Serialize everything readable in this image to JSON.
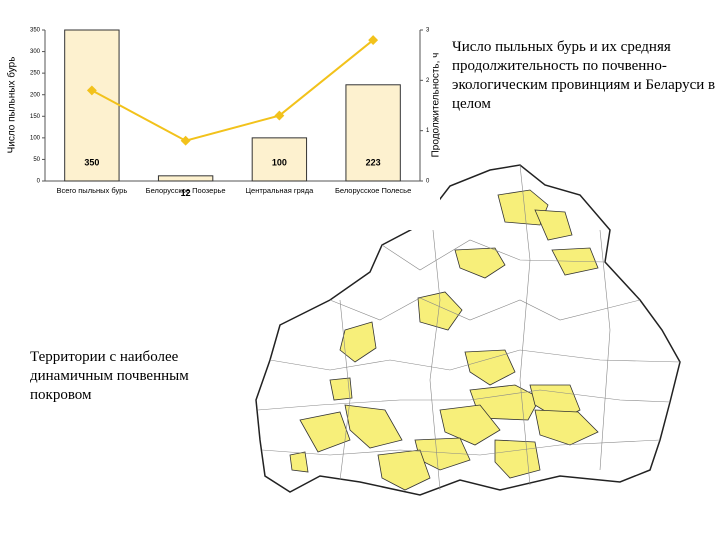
{
  "chart_data": {
    "type": "bar",
    "categories": [
      "Всего пыльных бурь",
      "Белорусское Поозерье",
      "Центральная гряда",
      "Белорусское Полесье"
    ],
    "series": [
      {
        "type": "bar",
        "color": "#fdf1cf",
        "values": [
          350,
          12,
          100,
          223
        ]
      },
      {
        "type": "line",
        "axis": "y2",
        "color": "#f2c21b",
        "values": [
          1.8,
          0.8,
          1.3,
          2.8
        ]
      }
    ],
    "ylabel": "Число пыльных бурь",
    "y2label": "Продолжительность, ч",
    "ylim": [
      0,
      350
    ],
    "yticks": [
      0,
      50,
      100,
      150,
      200,
      250,
      300,
      350
    ],
    "y2lim": [
      0,
      3
    ],
    "y2ticks": [
      0,
      1,
      2,
      3
    ]
  },
  "text": {
    "chart_caption": "Число пыльных бурь и их средняя продолжительность по почвенно-экологическим провинциям и Беларуси в целом",
    "map_caption": "Территории с наиболее динамичным почвенным покровом"
  }
}
